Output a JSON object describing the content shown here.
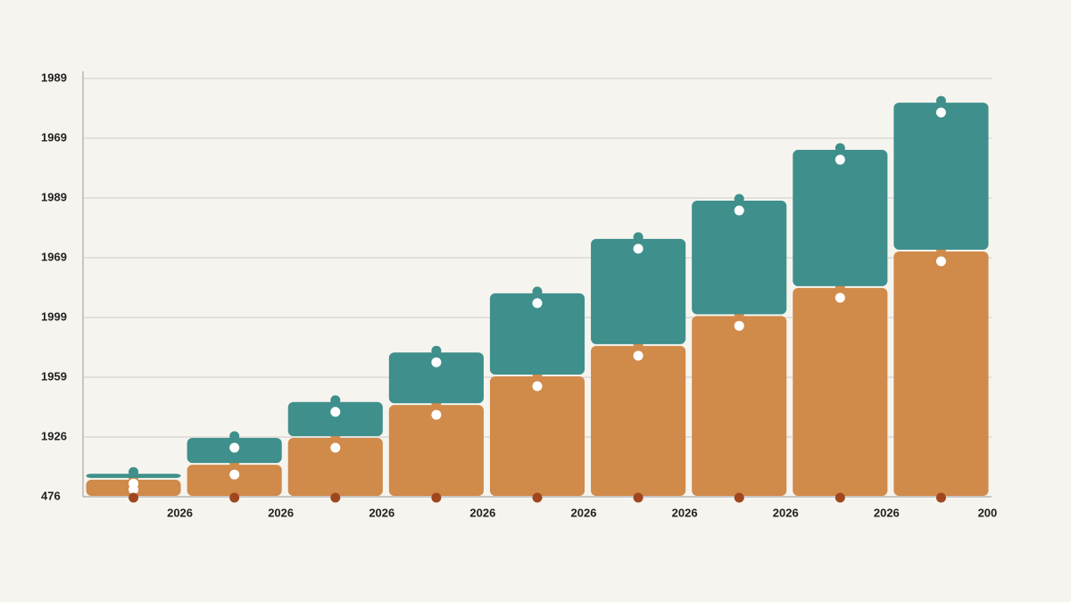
{
  "chart_data": {
    "type": "stacked_bar",
    "categories": [
      "2026",
      "2026",
      "2026",
      "2026",
      "2026",
      "2026",
      "2026",
      "2026",
      "200"
    ],
    "series": [
      {
        "color": "#d08a4a",
        "values": [
          0.3,
          0.55,
          1.0,
          1.55,
          2.03,
          2.54,
          3.04,
          3.51,
          4.12
        ]
      },
      {
        "color": "#3f8f8c",
        "values": [
          0.1,
          0.45,
          0.6,
          0.88,
          1.39,
          1.79,
          1.93,
          2.31,
          2.49
        ]
      }
    ],
    "ylim": [
      0,
      7
    ],
    "yticks": [
      {
        "value": 0,
        "label": "476"
      },
      {
        "value": 1,
        "label": "1926"
      },
      {
        "value": 2,
        "label": "1959"
      },
      {
        "value": 3,
        "label": "1999"
      },
      {
        "value": 4,
        "label": "1969"
      },
      {
        "value": 5,
        "label": "1989"
      },
      {
        "value": 6,
        "label": "1969"
      },
      {
        "value": 7,
        "label": "1989"
      }
    ],
    "grid": true
  }
}
